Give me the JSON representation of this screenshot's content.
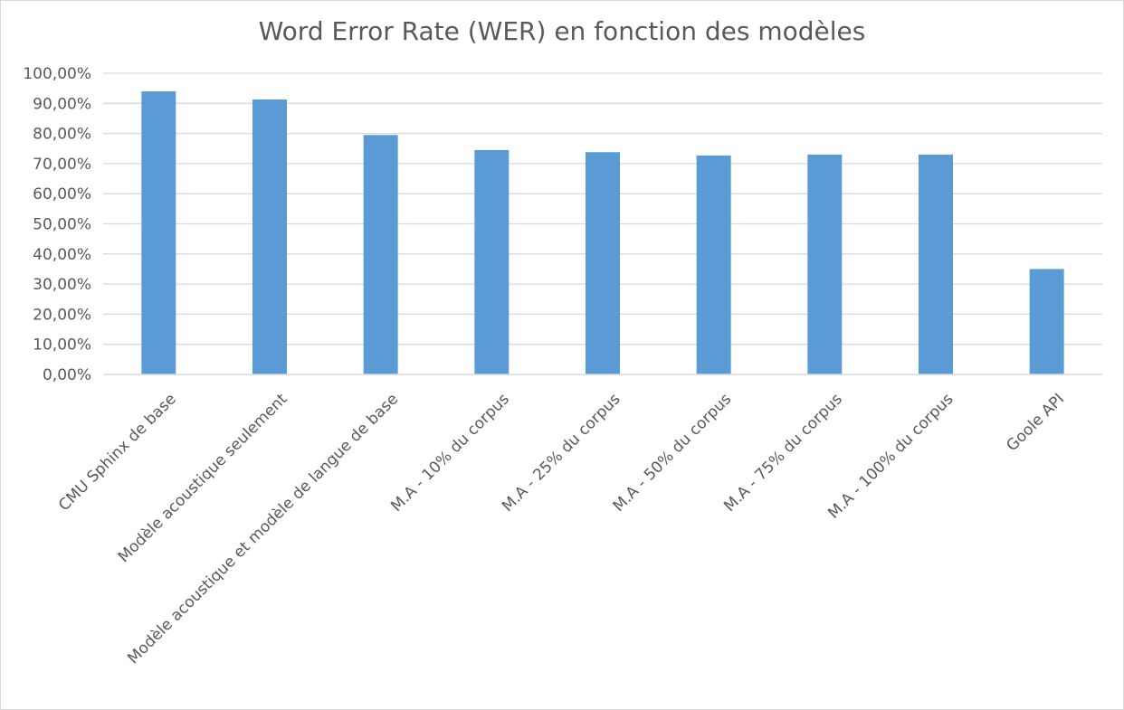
{
  "chart_data": {
    "type": "bar",
    "title": "Word Error Rate (WER) en fonction des modèles",
    "xlabel": "",
    "ylabel": "",
    "ylim": [
      0,
      100
    ],
    "y_tick_values": [
      0,
      10,
      20,
      30,
      40,
      50,
      60,
      70,
      80,
      90,
      100
    ],
    "y_tick_labels": [
      "0,00%",
      "10,00%",
      "20,00%",
      "30,00%",
      "40,00%",
      "50,00%",
      "60,00%",
      "70,00%",
      "80,00%",
      "90,00%",
      "100,00%"
    ],
    "categories": [
      "CMU Sphinx de base",
      "Modèle acoustique seulement",
      "Modèle acoustique et modèle de langue de base",
      "M.A - 10% du corpus",
      "M.A - 25% du corpus",
      "M.A - 50% du corpus",
      "M.A - 75% du corpus",
      "M.A - 100% du corpus",
      "Goole API"
    ],
    "values": [
      94.0,
      91.3,
      79.5,
      74.5,
      73.8,
      72.7,
      73.0,
      73.0,
      35.0
    ],
    "grid": true,
    "legend": "none",
    "bar_color": "#5b9bd5",
    "grid_color": "#d9d9d9",
    "text_color": "#595959"
  }
}
